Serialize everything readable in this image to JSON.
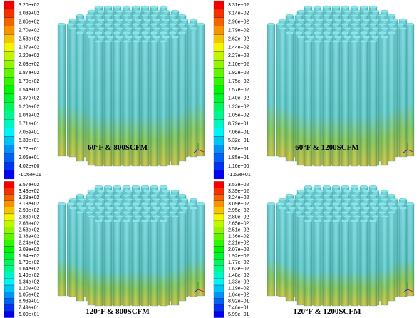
{
  "panels": [
    {
      "caption": "60°F & 800SCFM",
      "colorbar": [
        "3.20e+02",
        "3.03e+02",
        "2.86e+02",
        "2.70e+02",
        "2.53e+02",
        "2.37e+02",
        "2.20e+02",
        "2.03e+02",
        "1.87e+02",
        "1.70e+02",
        "1.54e+02",
        "1.37e+02",
        "1.20e+02",
        "1.04e+02",
        "8.71e+01",
        "7.05e+01",
        "5.39e+01",
        "3.72e+01",
        "2.06e+01",
        "4.02e+00",
        "-1.26e+01"
      ]
    },
    {
      "caption": "60°F & 1200SCFM",
      "colorbar": [
        "3.31e+02",
        "3.14e+02",
        "2.96e+02",
        "2.79e+02",
        "2.62e+02",
        "2.44e+02",
        "2.27e+02",
        "2.10e+02",
        "1.92e+02",
        "1.75e+02",
        "1.57e+02",
        "1.40e+02",
        "1.23e+02",
        "1.05e+02",
        "8.79e+01",
        "7.06e+01",
        "5.32e+01",
        "3.58e+01",
        "1.85e+01",
        "1.16e+00",
        "-1.62e+01"
      ]
    },
    {
      "caption": "120°F & 800SCFM",
      "colorbar": [
        "3.57e+02",
        "3.43e+02",
        "3.28e+02",
        "3.13e+02",
        "2.98e+02",
        "2.83e+02",
        "2.68e+02",
        "2.53e+02",
        "2.38e+02",
        "2.24e+02",
        "2.09e+02",
        "1.94e+02",
        "1.79e+02",
        "1.64e+02",
        "1.49e+02",
        "1.34e+02",
        "1.20e+02",
        "1.05e+02",
        "8.98e+01",
        "7.49e+01",
        "6.00e+01"
      ]
    },
    {
      "caption": "120°F & 1200SCFM",
      "colorbar": [
        "3.53e+02",
        "3.39e+02",
        "3.24e+02",
        "3.09e+02",
        "2.95e+02",
        "2.80e+02",
        "2.65e+02",
        "2.51e+02",
        "2.36e+02",
        "2.21e+02",
        "2.07e+02",
        "1.92e+02",
        "1.77e+02",
        "1.63e+02",
        "1.48e+02",
        "1.33e+02",
        "1.19e+02",
        "1.04e+02",
        "8.92e+01",
        "7.46e+01",
        "5.99e+01"
      ]
    }
  ]
}
